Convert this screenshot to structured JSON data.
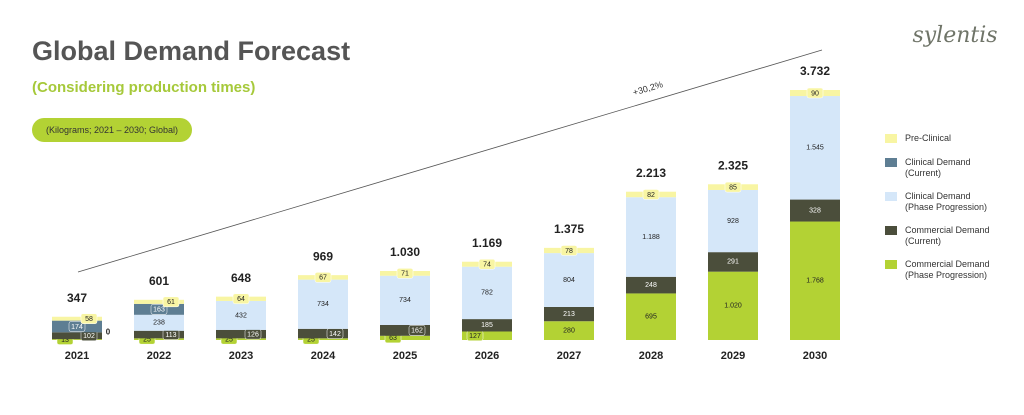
{
  "logo": "sylentis",
  "chart_data": {
    "type": "stacked-bar",
    "title": "Global Demand Forecast",
    "subtitle": "(Considering production times)",
    "unit_note": "(Kilograms; 2021 – 2030; Global)",
    "annotation": "+30,2%",
    "categories": [
      "2021",
      "2022",
      "2023",
      "2024",
      "2025",
      "2026",
      "2027",
      "2028",
      "2029",
      "2030"
    ],
    "series": [
      {
        "name": "Commercial Demand (Phase Progression)",
        "color": "#b3d234",
        "values": [
          13,
          25,
          25,
          25,
          63,
          127,
          280,
          695,
          1020,
          1768
        ],
        "value_labels": [
          "13",
          "25",
          "25",
          "25",
          "63",
          "127",
          "280",
          "695",
          "1.020",
          "1.768"
        ]
      },
      {
        "name": "Commercial Demand (Current)",
        "color": "#4b4e3b",
        "values": [
          102,
          113,
          126,
          142,
          162,
          185,
          213,
          248,
          291,
          328
        ]
      },
      {
        "name": "Clinical Demand (Phase Progression)",
        "color": "#d5e7f9",
        "values": [
          0,
          238,
          432,
          734,
          734,
          782,
          804,
          1188,
          928,
          1545
        ],
        "value_labels": [
          "0",
          "238",
          "432",
          "734",
          "734",
          "782",
          "804",
          "1.188",
          "928",
          "1.545"
        ]
      },
      {
        "name": "Clinical Demand (Current)",
        "color": "#5e7e93",
        "values": [
          174,
          163,
          null,
          null,
          null,
          null,
          null,
          null,
          null,
          null
        ]
      },
      {
        "name": "Pre-Clinical",
        "color": "#f8f5a3",
        "values": [
          58,
          61,
          64,
          67,
          71,
          74,
          78,
          82,
          85,
          90
        ]
      }
    ],
    "totals": {
      "values": [
        347,
        601,
        648,
        969,
        1030,
        1169,
        1375,
        2213,
        2325,
        3732
      ],
      "value_labels": [
        "347",
        "601",
        "648",
        "969",
        "1.030",
        "1.169",
        "1.375",
        "2.213",
        "2.325",
        "3.732"
      ]
    }
  }
}
